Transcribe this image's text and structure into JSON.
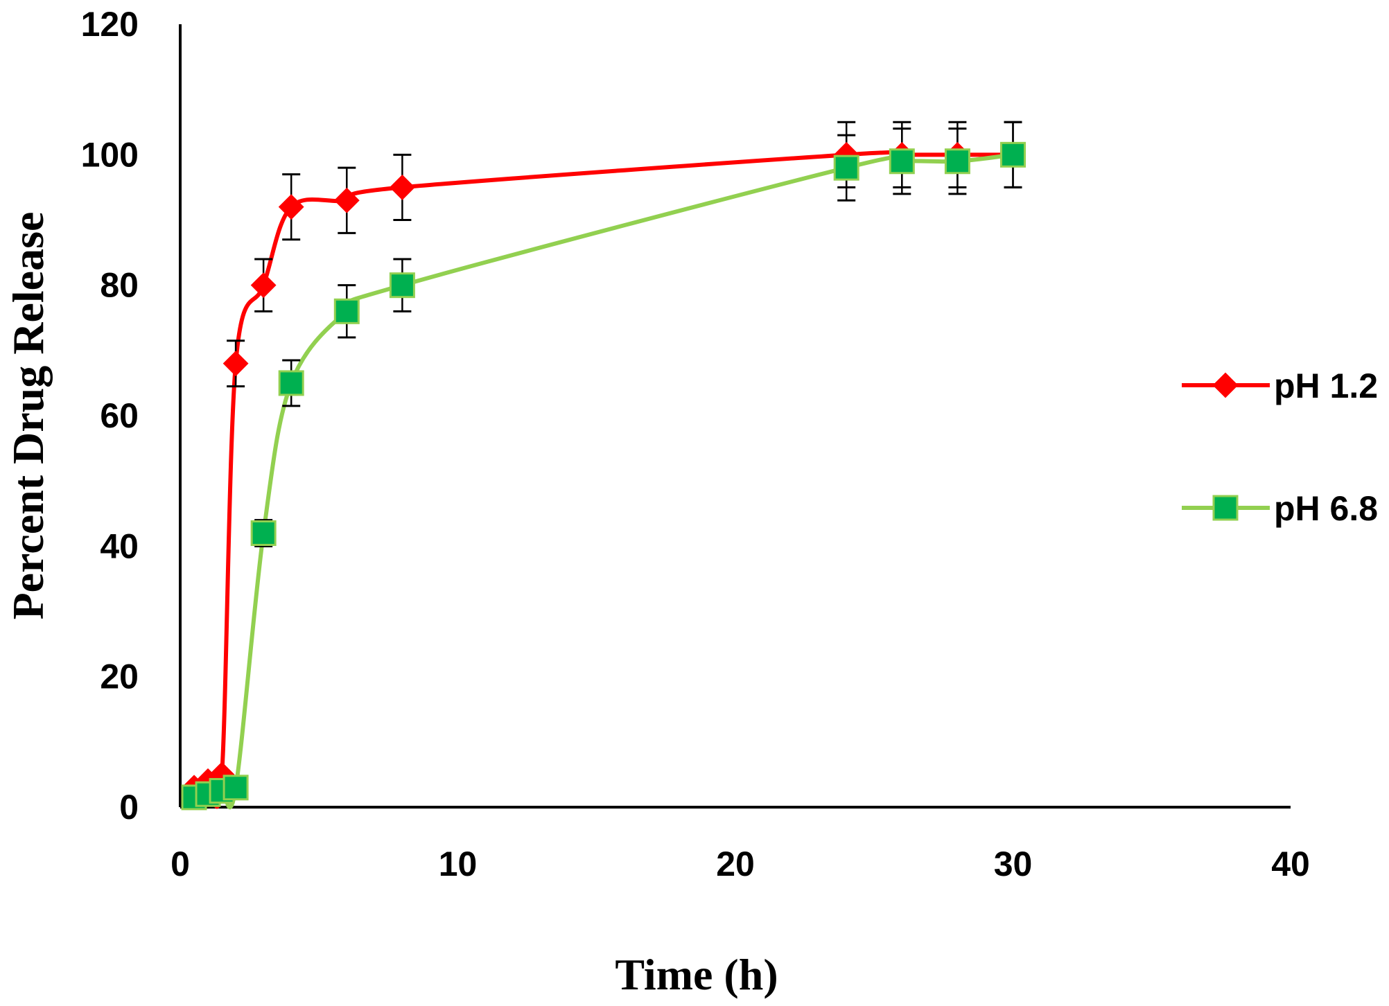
{
  "chart_data": {
    "type": "line",
    "title": "",
    "xlabel": "Time (h)",
    "ylabel": "Percent Drug Release",
    "xlim": [
      0,
      40
    ],
    "ylim": [
      0,
      120
    ],
    "xticks": [
      0,
      10,
      20,
      30,
      40
    ],
    "yticks": [
      0,
      20,
      40,
      60,
      80,
      100,
      120
    ],
    "grid": false,
    "legend_position": "right",
    "series": [
      {
        "name": "pH 1.2",
        "color": "#ff0000",
        "marker": "diamond",
        "marker_color": "#ff0000",
        "x": [
          0.5,
          1,
          1.5,
          2,
          3,
          4,
          6,
          8,
          24,
          26,
          28,
          30
        ],
        "y": [
          3,
          4,
          5,
          68,
          80,
          92,
          93,
          95,
          100,
          100,
          100,
          100
        ],
        "error": [
          0,
          0,
          0,
          3.5,
          4,
          5,
          5,
          5,
          5,
          5,
          5,
          5
        ]
      },
      {
        "name": "pH 6.8",
        "color": "#92d050",
        "marker": "square",
        "marker_color": "#00b050",
        "x": [
          0.5,
          1,
          1.5,
          2,
          3,
          4,
          6,
          8,
          24,
          26,
          28,
          30
        ],
        "y": [
          1.5,
          2,
          2.5,
          3,
          42,
          65,
          76,
          80,
          98,
          99,
          99,
          100
        ],
        "error": [
          0,
          0,
          0,
          0,
          2,
          3.5,
          4,
          4,
          5,
          5,
          5,
          5
        ]
      }
    ]
  }
}
